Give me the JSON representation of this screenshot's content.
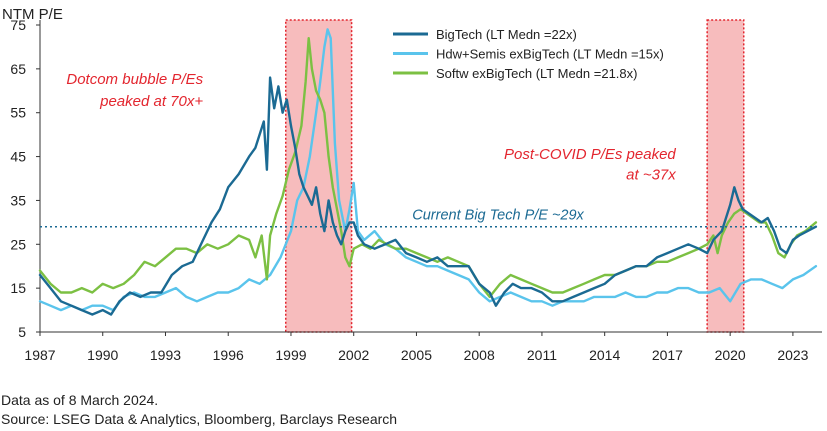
{
  "chart_data": {
    "type": "line",
    "ylabel": "NTM P/E",
    "ylim": [
      5,
      75
    ],
    "xlim": [
      1987,
      2024.2
    ],
    "yticks": [
      5,
      15,
      25,
      35,
      45,
      55,
      65,
      75
    ],
    "xticks": [
      1987,
      1990,
      1993,
      1996,
      1999,
      2002,
      2005,
      2008,
      2011,
      2014,
      2017,
      2020,
      2023
    ],
    "grid": false,
    "legend_position": "top-right",
    "shaded_periods": [
      [
        1998.75,
        2001.9
      ],
      [
        2018.9,
        2020.65
      ]
    ],
    "reference_line": {
      "y": 29,
      "label": "Current Big Tech P/E ~29x"
    },
    "annotations": [
      {
        "text": "Dotcom bubble P/Es",
        "x": 1994.8,
        "y": 61.5
      },
      {
        "text": "peaked at 70x+",
        "x": 1994.8,
        "y": 56.5
      },
      {
        "text": "Post-COVID P/Es peaked",
        "x": 2017.4,
        "y": 44.5
      },
      {
        "text": "at ~37x",
        "x": 2017.4,
        "y": 39.8
      }
    ],
    "series": [
      {
        "name": "BigTech (LT Medn =22x)",
        "color": "#1b6a93",
        "points": [
          [
            1987,
            18
          ],
          [
            1987.5,
            15
          ],
          [
            1988,
            12
          ],
          [
            1988.5,
            11
          ],
          [
            1989,
            10
          ],
          [
            1989.5,
            9
          ],
          [
            1990,
            10
          ],
          [
            1990.4,
            9
          ],
          [
            1990.8,
            12
          ],
          [
            1991.3,
            14
          ],
          [
            1991.8,
            13
          ],
          [
            1992.3,
            14
          ],
          [
            1992.8,
            14
          ],
          [
            1993.3,
            18
          ],
          [
            1993.8,
            20
          ],
          [
            1994.3,
            21
          ],
          [
            1994.8,
            26
          ],
          [
            1995.2,
            30
          ],
          [
            1995.6,
            33
          ],
          [
            1996,
            38
          ],
          [
            1996.5,
            41
          ],
          [
            1997,
            45
          ],
          [
            1997.3,
            47
          ],
          [
            1997.5,
            50
          ],
          [
            1997.7,
            53
          ],
          [
            1997.85,
            42
          ],
          [
            1998,
            63
          ],
          [
            1998.2,
            56
          ],
          [
            1998.4,
            61
          ],
          [
            1998.6,
            55
          ],
          [
            1998.8,
            58
          ],
          [
            1999,
            52
          ],
          [
            1999.2,
            47
          ],
          [
            1999.4,
            41
          ],
          [
            1999.6,
            38
          ],
          [
            1999.8,
            36
          ],
          [
            2000,
            34
          ],
          [
            2000.2,
            38
          ],
          [
            2000.4,
            32
          ],
          [
            2000.6,
            28
          ],
          [
            2000.8,
            35
          ],
          [
            2001,
            30
          ],
          [
            2001.2,
            27
          ],
          [
            2001.4,
            25
          ],
          [
            2001.6,
            28
          ],
          [
            2001.8,
            30
          ],
          [
            2002,
            30
          ],
          [
            2002.2,
            27
          ],
          [
            2002.5,
            25
          ],
          [
            2003,
            24
          ],
          [
            2003.5,
            25
          ],
          [
            2004,
            26
          ],
          [
            2004.5,
            23
          ],
          [
            2005,
            22
          ],
          [
            2005.5,
            21
          ],
          [
            2006,
            22
          ],
          [
            2006.5,
            20
          ],
          [
            2007,
            20
          ],
          [
            2007.5,
            20
          ],
          [
            2008,
            16
          ],
          [
            2008.5,
            14
          ],
          [
            2008.8,
            11
          ],
          [
            2009.2,
            14
          ],
          [
            2009.6,
            16
          ],
          [
            2010,
            15
          ],
          [
            2010.5,
            15
          ],
          [
            2011,
            14
          ],
          [
            2011.5,
            12
          ],
          [
            2012,
            12
          ],
          [
            2012.5,
            13
          ],
          [
            2013,
            14
          ],
          [
            2013.5,
            15
          ],
          [
            2014,
            16
          ],
          [
            2014.5,
            18
          ],
          [
            2015,
            19
          ],
          [
            2015.5,
            20
          ],
          [
            2016,
            20
          ],
          [
            2016.5,
            22
          ],
          [
            2017,
            23
          ],
          [
            2017.5,
            24
          ],
          [
            2018,
            25
          ],
          [
            2018.5,
            24
          ],
          [
            2018.9,
            23
          ],
          [
            2019.2,
            26
          ],
          [
            2019.6,
            28
          ],
          [
            2020,
            34
          ],
          [
            2020.2,
            38
          ],
          [
            2020.4,
            35
          ],
          [
            2020.6,
            33
          ],
          [
            2020.9,
            32
          ],
          [
            2021.2,
            31
          ],
          [
            2021.5,
            30
          ],
          [
            2021.8,
            31
          ],
          [
            2022.1,
            28
          ],
          [
            2022.4,
            24
          ],
          [
            2022.7,
            23
          ],
          [
            2023,
            26
          ],
          [
            2023.3,
            27
          ],
          [
            2023.7,
            28
          ],
          [
            2024.1,
            29
          ]
        ]
      },
      {
        "name": "Hdw+Semis exBigTech (LT Medn =15x)",
        "color": "#5ac4ec",
        "points": [
          [
            1987,
            12
          ],
          [
            1987.5,
            11
          ],
          [
            1988,
            10
          ],
          [
            1988.5,
            11
          ],
          [
            1989,
            10
          ],
          [
            1989.5,
            11
          ],
          [
            1990,
            11
          ],
          [
            1990.5,
            10
          ],
          [
            1991,
            13
          ],
          [
            1991.5,
            14
          ],
          [
            1992,
            13
          ],
          [
            1992.5,
            13
          ],
          [
            1993,
            14
          ],
          [
            1993.5,
            15
          ],
          [
            1994,
            13
          ],
          [
            1994.5,
            12
          ],
          [
            1995,
            13
          ],
          [
            1995.5,
            14
          ],
          [
            1996,
            14
          ],
          [
            1996.5,
            15
          ],
          [
            1997,
            17
          ],
          [
            1997.5,
            16
          ],
          [
            1998,
            18
          ],
          [
            1998.5,
            22
          ],
          [
            1999,
            28
          ],
          [
            1999.3,
            35
          ],
          [
            1999.6,
            38
          ],
          [
            1999.9,
            45
          ],
          [
            2000.2,
            55
          ],
          [
            2000.4,
            62
          ],
          [
            2000.6,
            70
          ],
          [
            2000.75,
            74
          ],
          [
            2000.9,
            72
          ],
          [
            2001.1,
            48
          ],
          [
            2001.3,
            35
          ],
          [
            2001.6,
            28
          ],
          [
            2001.8,
            33
          ],
          [
            2002,
            39
          ],
          [
            2002.2,
            28
          ],
          [
            2002.5,
            26
          ],
          [
            2003,
            28
          ],
          [
            2003.5,
            25
          ],
          [
            2004,
            24
          ],
          [
            2004.5,
            22
          ],
          [
            2005,
            21
          ],
          [
            2005.5,
            20
          ],
          [
            2006,
            20
          ],
          [
            2006.5,
            19
          ],
          [
            2007,
            18
          ],
          [
            2007.5,
            17
          ],
          [
            2008,
            14
          ],
          [
            2008.5,
            12
          ],
          [
            2009,
            13
          ],
          [
            2009.5,
            14
          ],
          [
            2010,
            13
          ],
          [
            2010.5,
            12
          ],
          [
            2011,
            12
          ],
          [
            2011.5,
            11
          ],
          [
            2012,
            12
          ],
          [
            2012.5,
            12
          ],
          [
            2013,
            12
          ],
          [
            2013.5,
            13
          ],
          [
            2014,
            13
          ],
          [
            2014.5,
            13
          ],
          [
            2015,
            14
          ],
          [
            2015.5,
            13
          ],
          [
            2016,
            13
          ],
          [
            2016.5,
            14
          ],
          [
            2017,
            14
          ],
          [
            2017.5,
            15
          ],
          [
            2018,
            15
          ],
          [
            2018.5,
            14
          ],
          [
            2019,
            14
          ],
          [
            2019.5,
            15
          ],
          [
            2020,
            12
          ],
          [
            2020.5,
            16
          ],
          [
            2021,
            17
          ],
          [
            2021.5,
            17
          ],
          [
            2022,
            16
          ],
          [
            2022.5,
            15
          ],
          [
            2023,
            17
          ],
          [
            2023.5,
            18
          ],
          [
            2024.1,
            20
          ]
        ]
      },
      {
        "name": "Softw exBigTech (LT Medn =21.8x)",
        "color": "#7cc043",
        "points": [
          [
            1987,
            19
          ],
          [
            1987.5,
            16
          ],
          [
            1988,
            14
          ],
          [
            1988.5,
            14
          ],
          [
            1989,
            15
          ],
          [
            1989.5,
            14
          ],
          [
            1990,
            16
          ],
          [
            1990.5,
            15
          ],
          [
            1991,
            16
          ],
          [
            1991.5,
            18
          ],
          [
            1992,
            21
          ],
          [
            1992.5,
            20
          ],
          [
            1993,
            22
          ],
          [
            1993.5,
            24
          ],
          [
            1994,
            24
          ],
          [
            1994.5,
            23
          ],
          [
            1995,
            25
          ],
          [
            1995.5,
            24
          ],
          [
            1996,
            25
          ],
          [
            1996.5,
            27
          ],
          [
            1997,
            26
          ],
          [
            1997.3,
            22
          ],
          [
            1997.6,
            27
          ],
          [
            1997.85,
            17
          ],
          [
            1998,
            27
          ],
          [
            1998.3,
            32
          ],
          [
            1998.6,
            36
          ],
          [
            1998.9,
            42
          ],
          [
            1999.2,
            46
          ],
          [
            1999.5,
            52
          ],
          [
            1999.7,
            62
          ],
          [
            1999.85,
            72
          ],
          [
            2000,
            65
          ],
          [
            2000.2,
            60
          ],
          [
            2000.4,
            58
          ],
          [
            2000.6,
            55
          ],
          [
            2000.8,
            45
          ],
          [
            2001,
            38
          ],
          [
            2001.2,
            33
          ],
          [
            2001.4,
            28
          ],
          [
            2001.6,
            22
          ],
          [
            2001.8,
            20
          ],
          [
            2002,
            24
          ],
          [
            2002.4,
            25
          ],
          [
            2002.8,
            24
          ],
          [
            2003.2,
            26
          ],
          [
            2003.6,
            25
          ],
          [
            2004,
            24
          ],
          [
            2004.5,
            24
          ],
          [
            2005,
            23
          ],
          [
            2005.5,
            22
          ],
          [
            2006,
            21
          ],
          [
            2006.5,
            22
          ],
          [
            2007,
            21
          ],
          [
            2007.5,
            20
          ],
          [
            2008,
            16
          ],
          [
            2008.5,
            13
          ],
          [
            2009,
            16
          ],
          [
            2009.5,
            18
          ],
          [
            2010,
            17
          ],
          [
            2010.5,
            16
          ],
          [
            2011,
            15
          ],
          [
            2011.5,
            14
          ],
          [
            2012,
            14
          ],
          [
            2012.5,
            15
          ],
          [
            2013,
            16
          ],
          [
            2013.5,
            17
          ],
          [
            2014,
            18
          ],
          [
            2014.5,
            18
          ],
          [
            2015,
            19
          ],
          [
            2015.5,
            20
          ],
          [
            2016,
            20
          ],
          [
            2016.5,
            21
          ],
          [
            2017,
            21
          ],
          [
            2017.5,
            22
          ],
          [
            2018,
            23
          ],
          [
            2018.5,
            24
          ],
          [
            2018.9,
            25
          ],
          [
            2019.2,
            27
          ],
          [
            2019.4,
            23
          ],
          [
            2019.6,
            27
          ],
          [
            2019.9,
            30
          ],
          [
            2020.2,
            32
          ],
          [
            2020.5,
            33
          ],
          [
            2020.8,
            32
          ],
          [
            2021.1,
            31
          ],
          [
            2021.4,
            30
          ],
          [
            2021.7,
            30
          ],
          [
            2022,
            27
          ],
          [
            2022.3,
            23
          ],
          [
            2022.6,
            22
          ],
          [
            2022.9,
            25
          ],
          [
            2023.2,
            27
          ],
          [
            2023.6,
            28
          ],
          [
            2024.1,
            30
          ]
        ]
      }
    ]
  },
  "footer": {
    "line1": "Data as of 8 March 2024.",
    "line2": "Source: LSEG Data & Analytics, Bloomberg, Barclays Research"
  }
}
